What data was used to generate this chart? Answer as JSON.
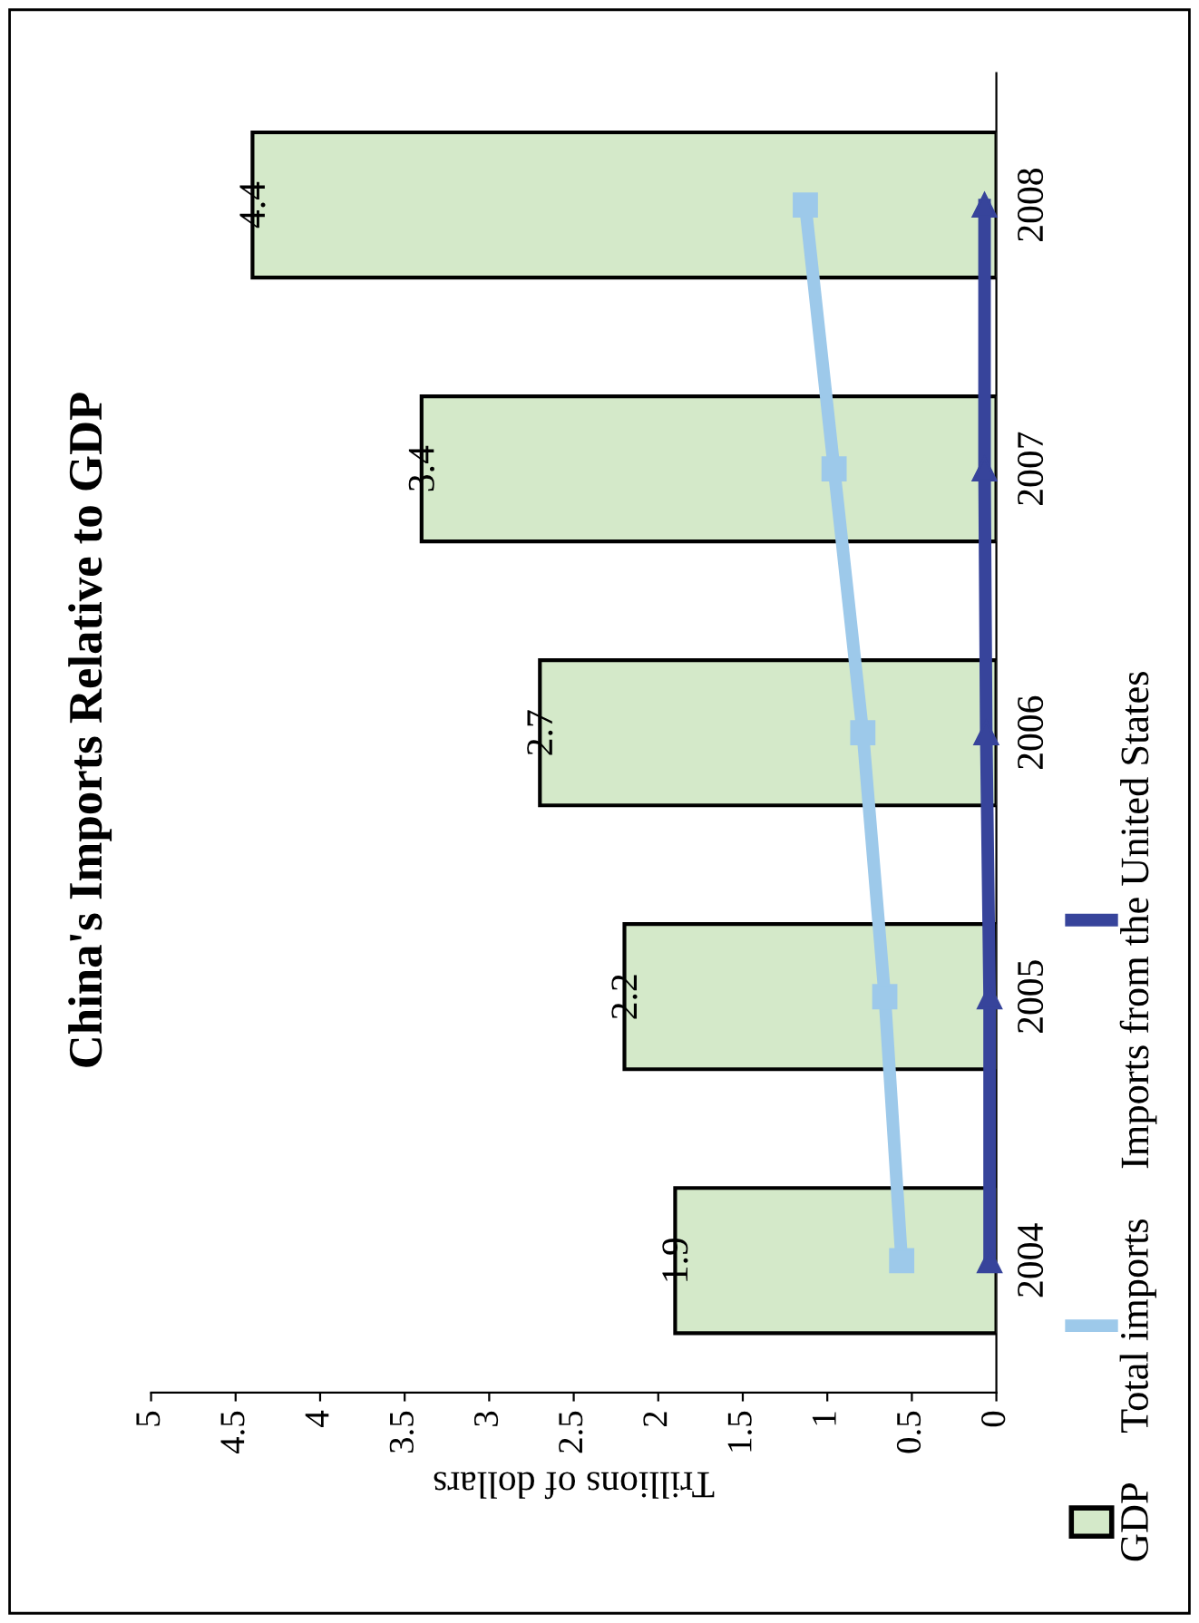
{
  "chart_data": {
    "type": "bar",
    "orientation": "horizontal",
    "title": "China's Imports Relative to GDP",
    "xlabel": "Trillions of dollars",
    "categories": [
      "2008",
      "2007",
      "2006",
      "2005",
      "2004"
    ],
    "series": [
      {
        "name": "GDP",
        "type": "bar",
        "color": "#d4e9c9",
        "values": [
          4.4,
          3.4,
          2.7,
          2.2,
          1.9
        ],
        "data_labels": true
      },
      {
        "name": "Total imports",
        "type": "line",
        "color": "#9dc9ea",
        "marker": "square",
        "values": [
          1.13,
          0.96,
          0.79,
          0.66,
          0.56
        ]
      },
      {
        "name": "Imports from the United States",
        "type": "line",
        "color": "#37449b",
        "marker": "triangle",
        "values": [
          0.07,
          0.07,
          0.06,
          0.04,
          0.04
        ]
      }
    ],
    "xlim": [
      5,
      0
    ],
    "xticks": [
      5,
      4.5,
      4,
      3.5,
      3,
      2.5,
      2,
      1.5,
      1,
      0.5,
      0
    ],
    "legend": "bottom",
    "grid": false
  }
}
